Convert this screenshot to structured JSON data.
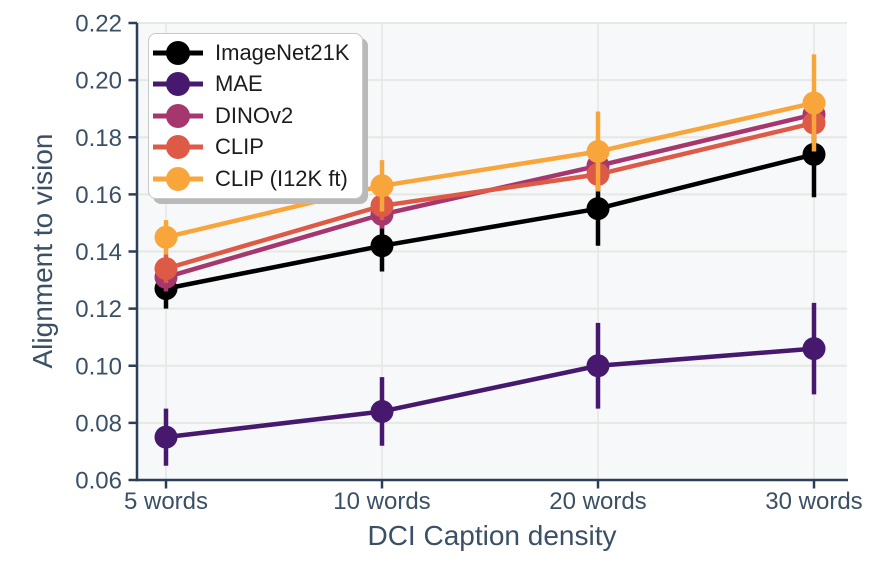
{
  "style": {
    "background": "#ffffff",
    "plot_bg": "#f7f8fa",
    "grid_color": "#e6e8e3",
    "spine_color": "#2b3f56",
    "tick_text_color": "#3b5064",
    "legend_border": "#c9c9c9",
    "legend_shadow": "#b9b9b9",
    "legend_text": "#1c1c1c"
  },
  "chart_data": {
    "type": "line",
    "title": "",
    "xlabel": "DCI Caption density",
    "ylabel": "Alignment to vision",
    "categories": [
      "5 words",
      "10 words",
      "20 words",
      "30 words"
    ],
    "ylim": [
      0.06,
      0.22
    ],
    "yticks": [
      0.06,
      0.08,
      0.1,
      0.12,
      0.14,
      0.16,
      0.18,
      0.2,
      0.22
    ],
    "grid": true,
    "legend_position": "upper left",
    "marker": "circle",
    "error_bars": true,
    "series": [
      {
        "name": "ImageNet21K",
        "color": "#000000",
        "values": [
          0.127,
          0.142,
          0.155,
          0.174
        ],
        "errors": [
          0.007,
          0.009,
          0.013,
          0.015
        ]
      },
      {
        "name": "MAE",
        "color": "#46196e",
        "values": [
          0.075,
          0.084,
          0.1,
          0.106
        ],
        "errors": [
          0.01,
          0.012,
          0.015,
          0.016
        ]
      },
      {
        "name": "DINOv2",
        "color": "#a5376e",
        "values": [
          0.131,
          0.153,
          0.17,
          0.188
        ],
        "errors": [
          0.005,
          0.005,
          0.005,
          0.005
        ]
      },
      {
        "name": "CLIP",
        "color": "#dd5a46",
        "values": [
          0.134,
          0.156,
          0.167,
          0.185
        ],
        "errors": [
          0.005,
          0.005,
          0.006,
          0.006
        ]
      },
      {
        "name": "CLIP (I12K ft)",
        "color": "#f8a53c",
        "values": [
          0.145,
          0.163,
          0.175,
          0.192
        ],
        "errors": [
          0.006,
          0.009,
          0.014,
          0.017
        ]
      }
    ]
  }
}
